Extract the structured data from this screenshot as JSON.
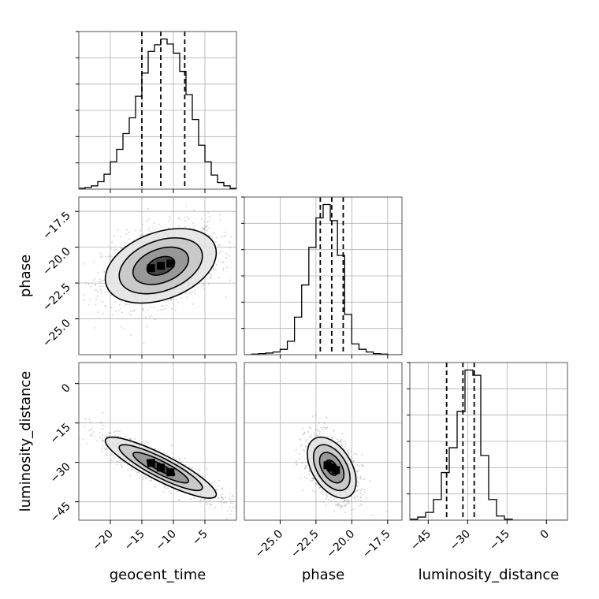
{
  "chart_data": {
    "type": "corner",
    "parameters": [
      "geocent_time",
      "phase",
      "luminosity_distance"
    ],
    "axis_labels": {
      "geocent_time": "geocent_time",
      "phase": "phase",
      "luminosity_distance": "luminosity_distance"
    },
    "ranges": {
      "geocent_time": [
        -25,
        0
      ],
      "phase": [
        -27.5,
        -16.5
      ],
      "luminosity_distance": [
        -52,
        8
      ]
    },
    "ticks": {
      "geocent_time": [
        {
          "v": -20,
          "label": "−20"
        },
        {
          "v": -15,
          "label": "−15"
        },
        {
          "v": -10,
          "label": "−10"
        },
        {
          "v": -5,
          "label": "−5"
        }
      ],
      "phase": [
        {
          "v": -25,
          "label": "−25.0"
        },
        {
          "v": -22.5,
          "label": "−22.5"
        },
        {
          "v": -20,
          "label": "−20.0"
        },
        {
          "v": -17.5,
          "label": "−17.5"
        }
      ],
      "luminosity_distance": [
        {
          "v": -45,
          "label": "−45"
        },
        {
          "v": -30,
          "label": "−30"
        },
        {
          "v": -15,
          "label": "−15"
        },
        {
          "v": 0,
          "label": "0"
        }
      ]
    },
    "histograms": {
      "geocent_time": {
        "edges": [
          -25,
          -24,
          -23,
          -22,
          -21,
          -20,
          -19,
          -18,
          -17,
          -16,
          -15,
          -14,
          -13,
          -12,
          -11,
          -10,
          -9,
          -8,
          -7,
          -6,
          -5,
          -4,
          -3,
          -2,
          -1,
          0
        ],
        "counts": [
          1,
          2,
          4,
          9,
          18,
          33,
          48,
          67,
          86,
          112,
          140,
          166,
          174,
          181,
          175,
          164,
          142,
          114,
          84,
          53,
          33,
          17,
          8,
          4,
          1
        ],
        "quantiles": [
          -15.0,
          -12.0,
          -8.2
        ]
      },
      "phase": {
        "edges": [
          -27.5,
          -27.0,
          -26.5,
          -26.0,
          -25.5,
          -25.0,
          -24.5,
          -24.0,
          -23.5,
          -23.0,
          -22.5,
          -22.0,
          -21.5,
          -21.0,
          -20.5,
          -20.0,
          -19.5,
          -19.0,
          -18.5,
          -18.0,
          -17.5,
          -17.0,
          -16.5
        ],
        "counts": [
          0,
          1,
          2,
          3,
          5,
          10,
          25,
          70,
          130,
          200,
          255,
          280,
          250,
          185,
          75,
          20,
          10,
          5,
          2,
          1,
          0,
          0
        ],
        "quantiles": [
          -22.2,
          -21.4,
          -20.6
        ]
      },
      "luminosity_distance": {
        "edges": [
          -52,
          -49,
          -46,
          -43,
          -40,
          -37,
          -34,
          -31,
          -28,
          -25,
          -22,
          -19,
          -16,
          -13,
          -10,
          -7,
          -4,
          -1,
          2,
          5,
          8
        ],
        "counts": [
          2,
          6,
          15,
          40,
          92,
          140,
          210,
          290,
          280,
          125,
          40,
          8,
          2,
          0,
          0,
          0,
          0,
          0,
          0,
          0,
          0
        ],
        "quantiles": [
          -38.0,
          -31.8,
          -27.5
        ]
      }
    },
    "pairs": [
      {
        "x": "geocent_time",
        "y": "phase",
        "mean": [
          -12,
          -21.3
        ],
        "sd": [
          4.4,
          1.3
        ],
        "corr": 0.35,
        "contour_levels_sigma": [
          0.5,
          1.0,
          1.5,
          2.0
        ]
      },
      {
        "x": "geocent_time",
        "y": "luminosity_distance",
        "mean": [
          -12,
          -32
        ],
        "sd": [
          4.4,
          5.8
        ],
        "corr": -0.88,
        "contour_levels_sigma": [
          0.5,
          1.0,
          1.5,
          2.0
        ]
      },
      {
        "x": "phase",
        "y": "luminosity_distance",
        "mean": [
          -21.4,
          -32
        ],
        "sd": [
          0.85,
          5.8
        ],
        "corr": -0.45,
        "contour_levels_sigma": [
          0.5,
          1.0,
          1.5,
          2.0
        ]
      }
    ],
    "scatter_samples": 1400,
    "grid": true,
    "colors": {
      "line": "#000000",
      "points": "#8c8c8c",
      "grid": "#b0b0b0",
      "density_light": "#d9d9d9",
      "density_dark": "#000000"
    }
  }
}
